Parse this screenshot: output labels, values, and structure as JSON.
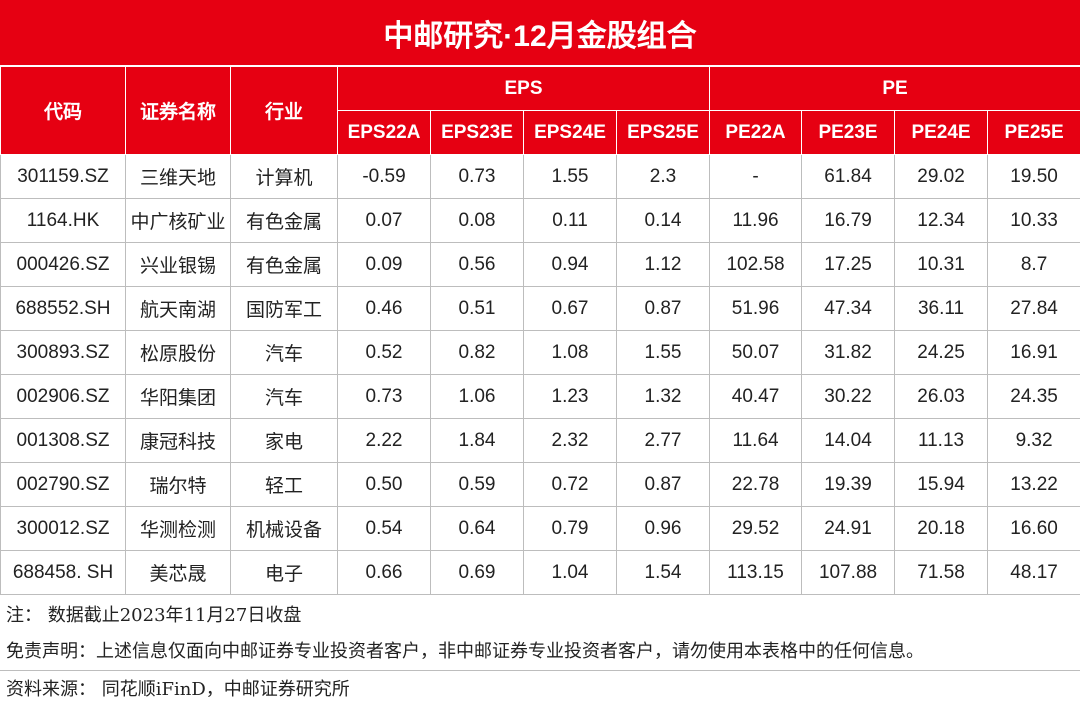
{
  "title": "中邮研究·12月金股组合",
  "headers": {
    "code": "代码",
    "name": "证券名称",
    "industry": "行业",
    "eps_group": "EPS",
    "pe_group": "PE",
    "eps_cols": [
      "EPS22A",
      "EPS23E",
      "EPS24E",
      "EPS25E"
    ],
    "pe_cols": [
      "PE22A",
      "PE23E",
      "PE24E",
      "PE25E"
    ]
  },
  "rows": [
    {
      "code": "301159.SZ",
      "name": "三维天地",
      "industry": "计算机",
      "eps": [
        "-0.59",
        "0.73",
        "1.55",
        "2.3"
      ],
      "pe": [
        "-",
        "61.84",
        "29.02",
        "19.50"
      ]
    },
    {
      "code": "1164.HK",
      "name": "中广核矿业",
      "industry": "有色金属",
      "eps": [
        "0.07",
        "0.08",
        "0.11",
        "0.14"
      ],
      "pe": [
        "11.96",
        "16.79",
        "12.34",
        "10.33"
      ]
    },
    {
      "code": "000426.SZ",
      "name": "兴业银锡",
      "industry": "有色金属",
      "eps": [
        "0.09",
        "0.56",
        "0.94",
        "1.12"
      ],
      "pe": [
        "102.58",
        "17.25",
        "10.31",
        "8.7"
      ]
    },
    {
      "code": "688552.SH",
      "name": "航天南湖",
      "industry": "国防军工",
      "eps": [
        "0.46",
        "0.51",
        "0.67",
        "0.87"
      ],
      "pe": [
        "51.96",
        "47.34",
        "36.11",
        "27.84"
      ]
    },
    {
      "code": "300893.SZ",
      "name": "松原股份",
      "industry": "汽车",
      "eps": [
        "0.52",
        "0.82",
        "1.08",
        "1.55"
      ],
      "pe": [
        "50.07",
        "31.82",
        "24.25",
        "16.91"
      ]
    },
    {
      "code": "002906.SZ",
      "name": "华阳集团",
      "industry": "汽车",
      "eps": [
        "0.73",
        "1.06",
        "1.23",
        "1.32"
      ],
      "pe": [
        "40.47",
        "30.22",
        "26.03",
        "24.35"
      ]
    },
    {
      "code": "001308.SZ",
      "name": "康冠科技",
      "industry": "家电",
      "eps": [
        "2.22",
        "1.84",
        "2.32",
        "2.77"
      ],
      "pe": [
        "11.64",
        "14.04",
        "11.13",
        "9.32"
      ]
    },
    {
      "code": "002790.SZ",
      "name": "瑞尔特",
      "industry": "轻工",
      "eps": [
        "0.50",
        "0.59",
        "0.72",
        "0.87"
      ],
      "pe": [
        "22.78",
        "19.39",
        "15.94",
        "13.22"
      ]
    },
    {
      "code": "300012.SZ",
      "name": "华测检测",
      "industry": "机械设备",
      "eps": [
        "0.54",
        "0.64",
        "0.79",
        "0.96"
      ],
      "pe": [
        "29.52",
        "24.91",
        "20.18",
        "16.60"
      ]
    },
    {
      "code": "688458. SH",
      "name": "美芯晟",
      "industry": "电子",
      "eps": [
        "0.66",
        "0.69",
        "1.04",
        "1.54"
      ],
      "pe": [
        "113.15",
        "107.88",
        "71.58",
        "48.17"
      ]
    }
  ],
  "notes": {
    "note": "注：  数据截止2023年11月27日收盘",
    "disclaimer": "免责声明：上述信息仅面向中邮证券专业投资者客户，非中邮证券专业投资者客户，请勿使用本表格中的任何信息。",
    "source": "资料来源：  同花顺iFinD，中邮证券研究所"
  },
  "colors": {
    "header_bg": "#e60012",
    "header_text": "#ffffff",
    "grid_line": "#bdbdbd"
  }
}
